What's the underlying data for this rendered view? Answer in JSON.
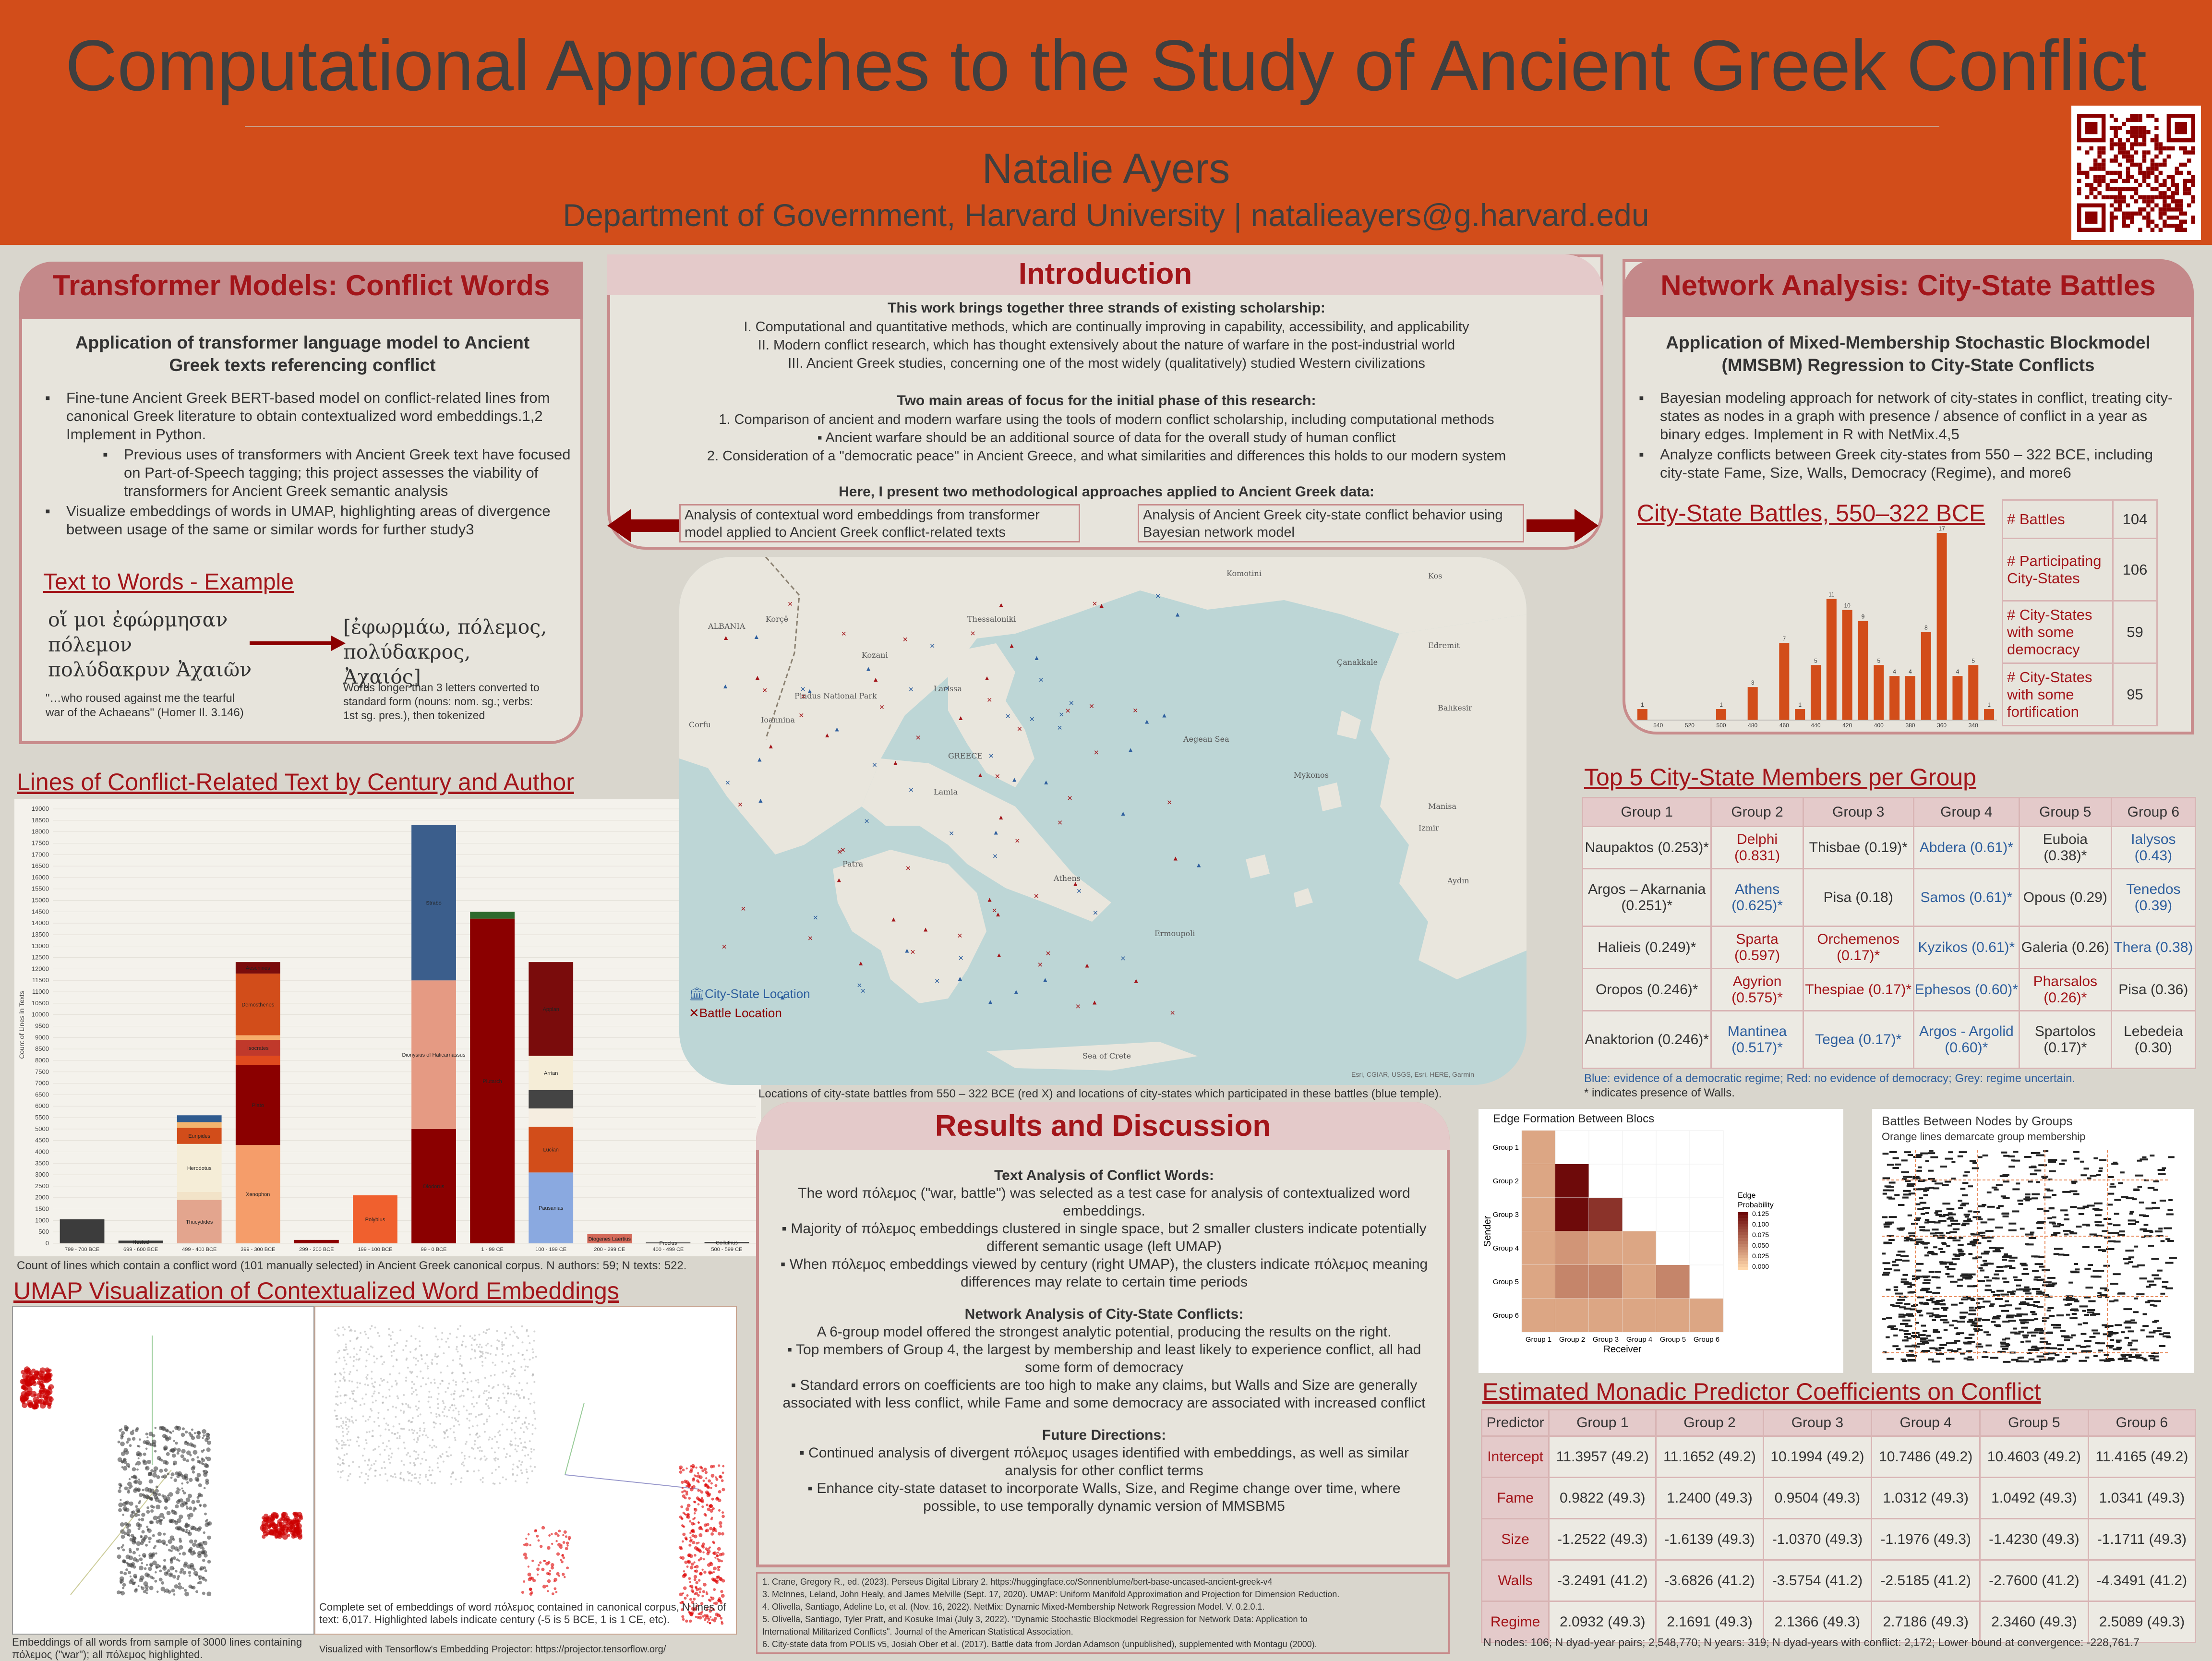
{
  "header": {
    "title": "Computational Approaches to the Study of Ancient Greek Conflict",
    "author": "Natalie Ayers",
    "department": "Department of Government, Harvard University | natalieayers@g.harvard.edu"
  },
  "transformer": {
    "heading": "Transformer Models: Conflict Words",
    "subheading": "Application of transformer language model to Ancient Greek texts referencing conflict",
    "bullets": [
      "Fine-tune Ancient Greek BERT-based model on conflict-related lines from canonical Greek literature to obtain contextualized word embeddings.1,2 Implement in Python.",
      "Previous uses of transformers with Ancient Greek text have focused on Part-of-Speech tagging; this project assesses the viability of transformers for Ancient Greek semantic analysis",
      "Visualize embeddings of words in UMAP, highlighting areas of divergence between usage of the same or similar words for further study3"
    ],
    "example_title": "Text to Words - Example",
    "greek_text": "οἵ μοι ἐφώρμησαν πόλεμον πολύδακρυν Ἀχαιῶν",
    "tokens": "[ἐφωρμάω, πόλεμος, πολύδακρος, Ἀχαιός]",
    "translation": "\"…who roused against me the tearful war of the Achaeans\" (Homer Il. 3.146)",
    "token_note": "Words longer than 3 letters converted to standard form (nouns: nom. sg.; verbs: 1st sg. pres.), then tokenized"
  },
  "intro": {
    "heading": "Introduction",
    "strands_title": "This work brings together three strands of existing scholarship:",
    "strands": [
      "I.    Computational and quantitative methods, which are continually improving in capability, accessibility, and applicability",
      "II.    Modern conflict research, which has thought extensively about the nature of warfare in the post-industrial world",
      "III.    Ancient Greek studies, concerning one of the most widely (qualitatively) studied Western civilizations"
    ],
    "focus_title": "Two main areas of focus for the initial phase of this research:",
    "focus": [
      "1.    Comparison of ancient and modern warfare using the tools of modern conflict scholarship, including computational methods",
      "▪    Ancient warfare should be an additional source of data for the overall study of human conflict",
      "2.    Consideration of a \"democratic peace\" in Ancient Greece, and what similarities and differences this holds to our modern system"
    ],
    "present": "Here, I present two methodological approaches applied to Ancient Greek data:",
    "box_left": "Analysis of contextual word embeddings from transformer model applied to Ancient Greek conflict-related texts",
    "box_right": "Analysis of Ancient Greek city-state conflict behavior using Bayesian network model"
  },
  "network": {
    "heading": "Network Analysis: City-State Battles",
    "subheading": "Application of Mixed-Membership Stochastic Blockmodel (MMSBM) Regression to City-State Conflicts",
    "bullets": [
      "Bayesian modeling approach for network of city-states in conflict, treating city-states as nodes in a graph with presence / absence of conflict in a year as binary edges. Implement in R with NetMix.4,5",
      "Analyze conflicts between Greek city-states from 550 – 322 BCE, including city-state Fame, Size, Walls, Democracy (Regime), and more6"
    ],
    "battles_title": "City-State Battles, 550–322 BCE",
    "stats": [
      {
        "label": "# Battles",
        "value": "104"
      },
      {
        "label": "# Participating City-States",
        "value": "106"
      },
      {
        "label": "# City-States with some democracy",
        "value": "59"
      },
      {
        "label": "# City-States with some fortification",
        "value": "95"
      }
    ]
  },
  "chart_data": [
    {
      "type": "bar",
      "title": "City-State Battles, 550–322 BCE",
      "categories": [
        "550",
        "540",
        "530",
        "520",
        "510",
        "500",
        "490",
        "480",
        "470",
        "460",
        "450",
        "440",
        "430",
        "420",
        "410",
        "400",
        "390",
        "380",
        "370",
        "360",
        "350",
        "340",
        "330"
      ],
      "tick_labels": [
        "540",
        "520",
        "500",
        "480",
        "460",
        "440",
        "420",
        "400",
        "380",
        "360",
        "340"
      ],
      "values": [
        1,
        0,
        0,
        0,
        0,
        1,
        0,
        3,
        0,
        7,
        1,
        5,
        11,
        10,
        9,
        5,
        4,
        4,
        8,
        17,
        4,
        5,
        1
      ],
      "color": "#d24d1a"
    },
    {
      "type": "bar",
      "title": "Lines of Conflict-Related Text by Century and Author",
      "ylabel": "Count of Lines in Texts",
      "ylim": [
        0,
        19000
      ],
      "categories": [
        "799 - 700 BCE",
        "699 - 600 BCE",
        "499 - 400 BCE",
        "399 - 300 BCE",
        "299 - 200 BCE",
        "199 - 100 BCE",
        "99 - 0 BCE",
        "1 - 99 CE",
        "100 - 199 CE",
        "200 - 299 CE",
        "400 - 499 CE",
        "500 - 599 CE"
      ],
      "segments": [
        [
          {
            "author": "",
            "value": 1050,
            "color": "#3c3c3c"
          }
        ],
        [
          {
            "author": "Hesiod",
            "value": 120,
            "color": "#3c3c3c"
          }
        ],
        [
          {
            "author": "Thucydides",
            "value": 1900,
            "color": "#e3a58e"
          },
          {
            "author": "",
            "value": 350,
            "color": "#f2e3c8"
          },
          {
            "author": "Herodotus",
            "value": 2100,
            "color": "#f5edd7"
          },
          {
            "author": "Euripides",
            "value": 700,
            "color": "#d24d1a"
          },
          {
            "author": "",
            "value": 250,
            "color": "#f3b46e"
          },
          {
            "author": "",
            "value": 300,
            "color": "#2f5b8f"
          }
        ],
        [
          {
            "author": "Xenophon",
            "value": 4300,
            "color": "#f59d6a"
          },
          {
            "author": "Plato",
            "value": 3500,
            "color": "#8b0000"
          },
          {
            "author": "",
            "value": 400,
            "color": "#e04a1e"
          },
          {
            "author": "Isocrates",
            "value": 700,
            "color": "#c0392b"
          },
          {
            "author": "",
            "value": 200,
            "color": "#f6ad6b"
          },
          {
            "author": "Demosthenes",
            "value": 2700,
            "color": "#d24d1a"
          },
          {
            "author": "Aeschines",
            "value": 500,
            "color": "#7a0c0c"
          }
        ],
        [
          {
            "author": "",
            "value": 150,
            "color": "#8b0000"
          }
        ],
        [
          {
            "author": "Polybius",
            "value": 2100,
            "color": "#f0602e"
          }
        ],
        [
          {
            "author": "Diodorus",
            "value": 5000,
            "color": "#8b0000"
          },
          {
            "author": "Dionysius of Halicarnassus",
            "value": 6500,
            "color": "#e59a83"
          },
          {
            "author": "Strabo",
            "value": 6800,
            "color": "#3b5e8c"
          }
        ],
        [
          {
            "author": "Plutarch",
            "value": 14200,
            "color": "#8b0000"
          },
          {
            "author": "",
            "value": 300,
            "color": "#2d6a2d"
          }
        ],
        [
          {
            "author": "Pausanias",
            "value": 3100,
            "color": "#8aa9e0"
          },
          {
            "author": "Lucian",
            "value": 2000,
            "color": "#d24d1a"
          },
          {
            "author": "",
            "value": 800,
            "color": "#f5ede0"
          },
          {
            "author": "",
            "value": 800,
            "color": "#444"
          },
          {
            "author": "Arrian",
            "value": 1500,
            "color": "#f5edd7"
          },
          {
            "author": "Appian",
            "value": 4100,
            "color": "#7a0c0c"
          }
        ],
        [
          {
            "author": "Diogenes Laertius",
            "value": 400,
            "color": "#d46a5a"
          }
        ],
        [
          {
            "author": "Proclus",
            "value": 40,
            "color": "#3c3c3c"
          }
        ],
        [
          {
            "author": "Colluthus",
            "value": 60,
            "color": "#3c3c3c"
          }
        ]
      ]
    },
    {
      "type": "heatmap",
      "title": "Edge Formation Between Blocs",
      "xlabel": "Receiver",
      "ylabel": "Sender",
      "x": [
        "Group 1",
        "Group 2",
        "Group 3",
        "Group 4",
        "Group 5",
        "Group 6"
      ],
      "y": [
        "Group 1",
        "Group 2",
        "Group 3",
        "Group 4",
        "Group 5",
        "Group 6"
      ],
      "legend_title": "Edge Probability",
      "legend_ticks": [
        "0.125",
        "0.100",
        "0.075",
        "0.050",
        "0.025",
        "0.000"
      ],
      "values": [
        [
          0.03,
          null,
          null,
          null,
          null,
          null
        ],
        [
          0.03,
          0.125,
          null,
          null,
          null,
          null
        ],
        [
          0.03,
          0.125,
          0.1,
          null,
          null,
          null
        ],
        [
          0.03,
          0.04,
          0.03,
          0.03,
          null,
          null
        ],
        [
          0.03,
          0.05,
          0.05,
          0.03,
          0.05,
          null
        ],
        [
          0.03,
          0.03,
          0.03,
          0.03,
          0.03,
          0.03
        ]
      ]
    }
  ],
  "lines_chart": {
    "title": "Lines of Conflict-Related Text by Century and Author",
    "caption": "Count of lines which contain a conflict word (101 manually selected) in Ancient Greek canonical corpus. N authors: 59; N texts: 522.",
    "ylabel": "Count of Lines in Texts"
  },
  "umap": {
    "title": "UMAP Visualization of Contextualized Word Embeddings",
    "caption_left": "Embeddings of all words from sample of 3000 lines containing πόλεμος (\"war\"); all πόλεμος highlighted.",
    "caption_right": "Complete set of embeddings of word πόλεμος contained in canonical corpus, N lines of text: 6,017. Highlighted labels indicate century (-5 is 5 BCE, 1 is 1 CE, etc).",
    "caption_right2": "Visualized with Tensorflow's Embedding Projector: https://projector.tensorflow.org/"
  },
  "map": {
    "legend_city": "City-State Location",
    "legend_battle": "Battle Location",
    "caption": "Locations of city-state battles from 550 – 322 BCE (red X) and locations of city-states which participated in these battles (blue temple).",
    "labels": [
      "Komotini",
      "Thessaloniki",
      "Kozani",
      "Korçë",
      "Larissa",
      "Ioannina",
      "Corfu",
      "Pindus National Park",
      "GREECE",
      "Patra",
      "Athens",
      "Aegean Sea",
      "Mykonos",
      "Kos",
      "Izmir",
      "Manisa",
      "Balıkesir",
      "Çanakkale",
      "Edremit",
      "Aydın",
      "Sea of Crete",
      "Lamia",
      "ALBANIA",
      "Ermoupoli"
    ],
    "attribution": "Esri, CGIAR, USGS, Esri, HERE, Garmin"
  },
  "results": {
    "heading": "Results and Discussion",
    "text_title": "Text Analysis of Conflict Words:",
    "text_intro": "The word πόλεμος (\"war, battle\") was selected as a test case for analysis of contextualized word embeddings.",
    "text_bullets": [
      "Majority of πόλεμος embeddings clustered in single space, but 2 smaller clusters indicate potentially different semantic usage (left UMAP)",
      "When πόλεμος embeddings viewed by century (right UMAP), the clusters indicate πόλεμος meaning differences may relate to certain time periods"
    ],
    "net_title": "Network Analysis of City-State Conflicts:",
    "net_intro": "A 6-group model offered the strongest analytic potential, producing the results on the right.",
    "net_bullets": [
      "Top members of Group 4, the largest by membership and least likely to experience conflict, all had some form of democracy",
      "Standard errors on coefficients are too high to make any claims, but Walls and Size are generally associated with less conflict, while Fame and some democracy are associated with increased conflict"
    ],
    "future_title": "Future Directions:",
    "future_bullets": [
      "Continued analysis of divergent πόλεμος usages identified with embeddings, as well as similar analysis for other conflict terms",
      "Enhance city-state dataset to incorporate Walls, Size, and Regime change over time, where possible, to use temporally dynamic version of MMSBM5"
    ]
  },
  "refs": [
    "1.   Crane, Gregory R., ed. (2023). Perseus Digital Library          2.  https://huggingface.co/Sonnenblume/bert-base-uncased-ancient-greek-v4",
    "3.   McInnes, Leland, John Healy, and James Melville (Sept. 17, 2020). UMAP: Uniform Manifold Approximation and Projection for Dimension Reduction.",
    "4.   Olivella, Santiago, Adeline Lo, et al. (Nov. 16, 2022). NetMix: Dynamic Mixed-Membership Network Regression Model. V. 0.2.0.1.",
    "5.   Olivella, Santiago, Tyler Pratt, and Kosuke Imai (July 3, 2022). \"Dynamic Stochastic Blockmodel Regression for Network Data: Application to",
    "       International Militarized Conflicts\". Journal of the American Statistical Association.",
    "6.   City-state data from POLIS v5, Josiah Ober et al. (2017). Battle data from Jordan Adamson (unpublished), supplemented with Montagu (2000)."
  ],
  "members": {
    "title": "Top 5 City-State Members per Group",
    "headers": [
      "Group 1",
      "Group 2",
      "Group 3",
      "Group 4",
      "Group 5",
      "Group 6"
    ],
    "rows": [
      [
        {
          "t": "Naupaktos (0.253)*",
          "c": "g"
        },
        {
          "t": "Delphi (0.831)",
          "c": "r"
        },
        {
          "t": "Thisbae (0.19)*",
          "c": "g"
        },
        {
          "t": "Abdera (0.61)*",
          "c": "b"
        },
        {
          "t": "Euboia (0.38)*",
          "c": "g"
        },
        {
          "t": "Ialysos (0.43)",
          "c": "b"
        }
      ],
      [
        {
          "t": "Argos – Akarnania (0.251)*",
          "c": "g"
        },
        {
          "t": "Athens (0.625)*",
          "c": "b"
        },
        {
          "t": "Pisa (0.18)",
          "c": "g"
        },
        {
          "t": "Samos (0.61)*",
          "c": "b"
        },
        {
          "t": "Opous (0.29)",
          "c": "g"
        },
        {
          "t": "Tenedos (0.39)",
          "c": "b"
        }
      ],
      [
        {
          "t": "Halieis (0.249)*",
          "c": "g"
        },
        {
          "t": "Sparta (0.597)",
          "c": "r"
        },
        {
          "t": "Orchemenos (0.17)*",
          "c": "r"
        },
        {
          "t": "Kyzikos (0.61)*",
          "c": "b"
        },
        {
          "t": "Galeria (0.26)",
          "c": "g"
        },
        {
          "t": "Thera (0.38)",
          "c": "b"
        }
      ],
      [
        {
          "t": "Oropos (0.246)*",
          "c": "g"
        },
        {
          "t": "Agyrion (0.575)*",
          "c": "r"
        },
        {
          "t": "Thespiae (0.17)*",
          "c": "r"
        },
        {
          "t": "Ephesos (0.60)*",
          "c": "b"
        },
        {
          "t": "Pharsalos (0.26)*",
          "c": "r"
        },
        {
          "t": "Pisa (0.36)",
          "c": "g"
        }
      ],
      [
        {
          "t": "Anaktorion (0.246)*",
          "c": "g"
        },
        {
          "t": "Mantinea (0.517)*",
          "c": "b"
        },
        {
          "t": "Tegea (0.17)*",
          "c": "b"
        },
        {
          "t": "Argos - Argolid (0.60)*",
          "c": "b"
        },
        {
          "t": "Spartolos (0.17)*",
          "c": "g"
        },
        {
          "t": "Lebedeia (0.30)",
          "c": "g"
        }
      ]
    ],
    "note1": "Blue: evidence of a democratic regime; Red: no evidence of democracy; Grey: regime uncertain.",
    "note2": "* indicates presence of Walls."
  },
  "battles_nodes": {
    "title": "Battles Between Nodes by Groups",
    "subtitle": "Orange lines demarcate group membership"
  },
  "coef": {
    "title": "Estimated Monadic Predictor Coefficients on Conflict",
    "headers": [
      "Predictor",
      "Group 1",
      "Group 2",
      "Group 3",
      "Group 4",
      "Group 5",
      "Group 6"
    ],
    "rows": [
      [
        "Intercept",
        "11.3957 (49.2)",
        "11.1652 (49.2)",
        "10.1994 (49.2)",
        "10.7486 (49.2)",
        "10.4603 (49.2)",
        "11.4165 (49.2)"
      ],
      [
        "Fame",
        "0.9822 (49.3)",
        "1.2400 (49.3)",
        "0.9504 (49.3)",
        "1.0312 (49.3)",
        "1.0492 (49.3)",
        "1.0341 (49.3)"
      ],
      [
        "Size",
        "-1.2522 (49.3)",
        "-1.6139 (49.3)",
        "-1.0370 (49.3)",
        "-1.1976 (49.3)",
        "-1.4230 (49.3)",
        "-1.1711 (49.3)"
      ],
      [
        "Walls",
        "-3.2491 (41.2)",
        "-3.6826 (41.2)",
        "-3.5754 (41.2)",
        "-2.5185 (41.2)",
        "-2.7600 (41.2)",
        "-4.3491 (41.2)"
      ],
      [
        "Regime",
        "2.0932 (49.3)",
        "2.1691 (49.3)",
        "2.1366 (49.3)",
        "2.7186 (49.3)",
        "2.3460 (49.3)",
        "2.5089 (49.3)"
      ]
    ],
    "note": "N nodes: 106; N dyad-year pairs; 2,548,770; N years: 319; N dyad-years with conflict: 2,172; Lower bound at convergence: -228,761.7"
  }
}
